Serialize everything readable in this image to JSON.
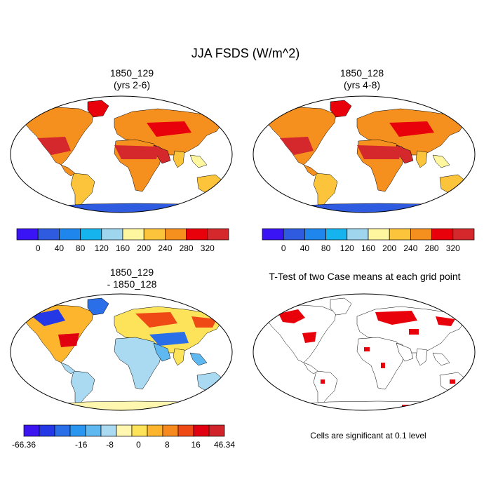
{
  "title": "JJA FSDS (W/m^2)",
  "panels": {
    "p1": {
      "line1": "1850_129",
      "line2": "(yrs 2-6)"
    },
    "p2": {
      "line1": "1850_128",
      "line2": "(yrs 4-8)"
    },
    "p3": {
      "line1": "1850_129",
      "line2": "- 1850_128"
    },
    "p4": {
      "line1": "T-Test of two Case means at each grid point"
    }
  },
  "colorbar_abs": {
    "labels": [
      "0",
      "40",
      "80",
      "120",
      "160",
      "200",
      "240",
      "280",
      "320"
    ],
    "colors": [
      "#3a14f5",
      "#2f5be0",
      "#1e86ec",
      "#15b4ee",
      "#9fd6ee",
      "#fff6a0",
      "#fcc43a",
      "#f5901e",
      "#e8000a",
      "#d4282c"
    ]
  },
  "colorbar_diff": {
    "labels": [
      "-66.36",
      "-16",
      "-8",
      "0",
      "8",
      "16",
      "46.34"
    ],
    "colors": [
      "#3c14f0",
      "#2438e6",
      "#2a6ee8",
      "#2a96f0",
      "#60b8f0",
      "#a9daf2",
      "#fff7b0",
      "#fde35a",
      "#fcb52c",
      "#f68a1e",
      "#ef4a16",
      "#e00010",
      "#d0242a"
    ]
  },
  "significance_note": "Cells are significant at 0.1 level",
  "palette": {
    "land_hot": "#d4282c",
    "land_orange": "#f5901e",
    "land_yellow": "#fcc43a",
    "antarctica_abs": "#2f5be0",
    "sig": "#e8000a"
  }
}
